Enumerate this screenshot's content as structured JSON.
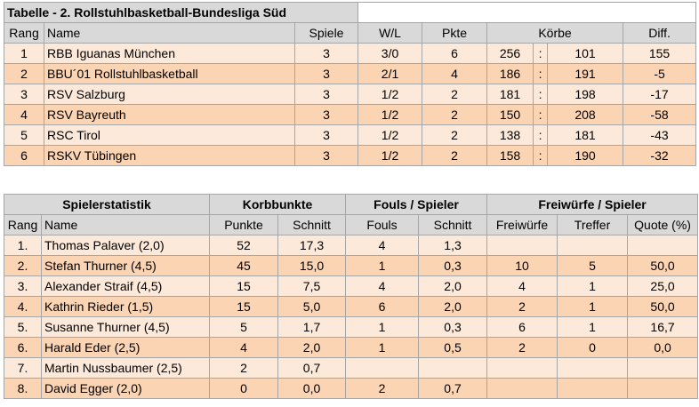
{
  "standings": {
    "title": "Tabelle - 2. Rollstuhlbasketball-Bundesliga Süd",
    "headers": {
      "rank": "Rang",
      "name": "Name",
      "games": "Spiele",
      "wl": "W/L",
      "points": "Pkte",
      "baskets": "Körbe",
      "diff": "Diff."
    },
    "rows": [
      {
        "rank": "1",
        "name": "RBB Iguanas München",
        "games": "3",
        "wl": "3/0",
        "points": "6",
        "for": "256",
        "sep": ":",
        "against": "101",
        "diff": "155"
      },
      {
        "rank": "2",
        "name": "BBU´01 Rollstuhlbasketball",
        "games": "3",
        "wl": "2/1",
        "points": "4",
        "for": "186",
        "sep": ":",
        "against": "191",
        "diff": "-5"
      },
      {
        "rank": "3",
        "name": "RSV Salzburg",
        "games": "3",
        "wl": "1/2",
        "points": "2",
        "for": "181",
        "sep": ":",
        "against": "198",
        "diff": "-17"
      },
      {
        "rank": "4",
        "name": "RSV Bayreuth",
        "games": "3",
        "wl": "1/2",
        "points": "2",
        "for": "150",
        "sep": ":",
        "against": "208",
        "diff": "-58"
      },
      {
        "rank": "5",
        "name": "RSC Tirol",
        "games": "3",
        "wl": "1/2",
        "points": "2",
        "for": "138",
        "sep": ":",
        "against": "181",
        "diff": "-43"
      },
      {
        "rank": "6",
        "name": "RSKV Tübingen",
        "games": "3",
        "wl": "1/2",
        "points": "2",
        "for": "158",
        "sep": ":",
        "against": "190",
        "diff": "-32"
      }
    ]
  },
  "players": {
    "group_headers": {
      "stats": "Spielerstatistik",
      "points": "Korbbunkte",
      "fouls": "Fouls / Spieler",
      "freethrows": "Freiwürfe / Spieler"
    },
    "headers": {
      "rank": "Rang",
      "name": "Name",
      "points": "Punkte",
      "avg": "Schnitt",
      "fouls": "Fouls",
      "fouls_avg": "Schnitt",
      "ft": "Freiwürfe",
      "hits": "Treffer",
      "quote": "Quote (%)"
    },
    "rows": [
      {
        "rank": "1.",
        "name": "Thomas Palaver (2,0)",
        "points": "52",
        "avg": "17,3",
        "fouls": "4",
        "fouls_avg": "1,3",
        "ft": "",
        "hits": "",
        "quote": ""
      },
      {
        "rank": "2.",
        "name": "Stefan Thurner (4,5)",
        "points": "45",
        "avg": "15,0",
        "fouls": "1",
        "fouls_avg": "0,3",
        "ft": "10",
        "hits": "5",
        "quote": "50,0"
      },
      {
        "rank": "3.",
        "name": "Alexander Straif (4,5)",
        "points": "15",
        "avg": "7,5",
        "fouls": "4",
        "fouls_avg": "2,0",
        "ft": "4",
        "hits": "1",
        "quote": "25,0"
      },
      {
        "rank": "4.",
        "name": "Kathrin Rieder (1,5)",
        "points": "15",
        "avg": "5,0",
        "fouls": "6",
        "fouls_avg": "2,0",
        "ft": "2",
        "hits": "1",
        "quote": "50,0"
      },
      {
        "rank": "5.",
        "name": "Susanne Thurner (4,5)",
        "points": "5",
        "avg": "1,7",
        "fouls": "1",
        "fouls_avg": "0,3",
        "ft": "6",
        "hits": "1",
        "quote": "16,7"
      },
      {
        "rank": "6.",
        "name": "Harald Eder (2,5)",
        "points": "4",
        "avg": "2,0",
        "fouls": "1",
        "fouls_avg": "0,5",
        "ft": "2",
        "hits": "0",
        "quote": "0,0"
      },
      {
        "rank": "7.",
        "name": "Martin Nussbaumer (2,5)",
        "points": "2",
        "avg": "0,7",
        "fouls": "",
        "fouls_avg": "",
        "ft": "",
        "hits": "",
        "quote": ""
      },
      {
        "rank": "8.",
        "name": "David Egger (2,0)",
        "points": "0",
        "avg": "0,0",
        "fouls": "2",
        "fouls_avg": "0,7",
        "ft": "",
        "hits": "",
        "quote": ""
      }
    ]
  }
}
